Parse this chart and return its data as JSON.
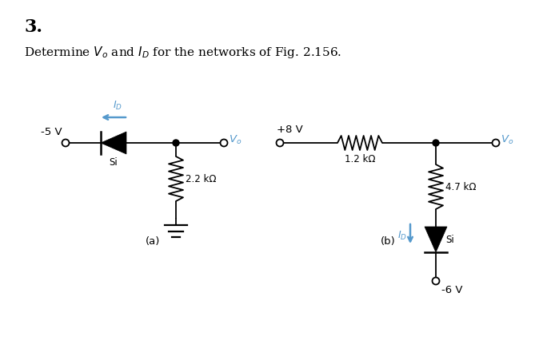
{
  "title_number": "3.",
  "description": "Determine $V_o$ and $I_D$ for the networks of Fig. 2.156.",
  "background_color": "#ffffff",
  "figsize": [
    6.84,
    4.51
  ],
  "dpi": 100,
  "circuit_a": {
    "label": "(a)",
    "voltage_left": "-5 V",
    "diode_label": "Si",
    "resistor_label": "2.2 kΩ",
    "vo_label": "$V_o$",
    "id_label": "$I_D$",
    "id_arrow_color": "#5599cc"
  },
  "circuit_b": {
    "label": "(b)",
    "voltage_left": "+8 V",
    "resistor_top_label": "1.2 kΩ",
    "resistor_right_label": "4.7 kΩ",
    "diode_label": "Si",
    "vo_label": "$V_o$",
    "id_label": "$I_D$",
    "id_arrow_color": "#5599cc",
    "voltage_bottom": "-6 V"
  },
  "arrow_color": "#5599cc",
  "wire_color": "#000000",
  "diode_color": "#000000",
  "resistor_color": "#000000",
  "text_color": "#000000",
  "vo_color": "#5599cc",
  "font_size_title": 16,
  "font_size_desc": 11,
  "font_size_label": 9,
  "font_size_sub": 8.5
}
